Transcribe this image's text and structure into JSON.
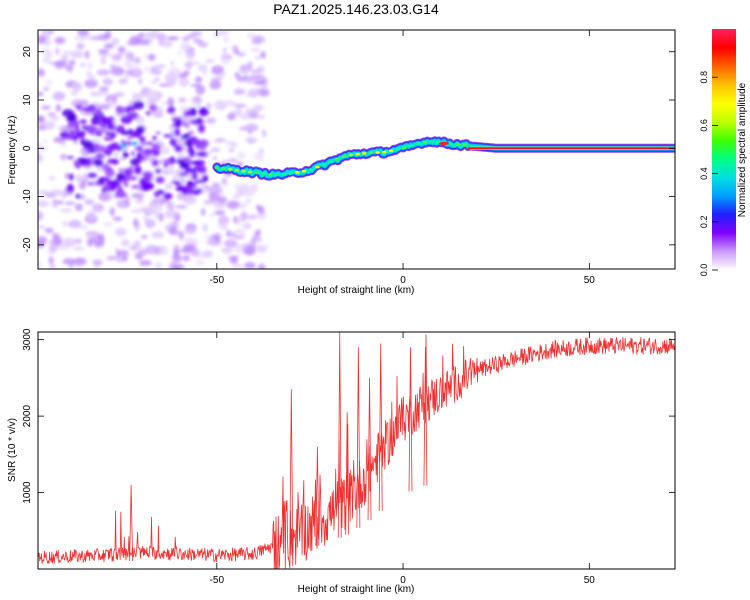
{
  "title": "PAZ1.2025.146.23.03.G14",
  "chart_data": [
    {
      "type": "heatmap",
      "xlabel": "Height of straight line (km)",
      "ylabel": "Frequency (Hz)",
      "xlim": [
        -98,
        73
      ],
      "ylim": [
        -25,
        24.5
      ],
      "xticks": [
        -50,
        0,
        50
      ],
      "yticks": [
        -20,
        -10,
        0,
        10,
        20
      ],
      "grid": false,
      "colorbar": {
        "label": "Normalized spectral amplitude",
        "range": [
          0,
          1
        ],
        "ticks": [
          "0.0",
          "0.2",
          "0.4",
          "0.6",
          "0.8"
        ],
        "colormap": "rainbow",
        "colors": [
          "#ffffff",
          "#cc99ff",
          "#8000ff",
          "#2020ff",
          "#00a0ff",
          "#00e0e0",
          "#00ff80",
          "#40ff00",
          "#c0ff00",
          "#ffff00",
          "#ffc000",
          "#ff6000",
          "#ff0000",
          "#ff2060"
        ]
      },
      "ridge": {
        "x": [
          -50,
          -45,
          -40,
          -35,
          -30,
          -25,
          -20,
          -15,
          -10,
          -5,
          0,
          5,
          8,
          12,
          18,
          25,
          40,
          55,
          73
        ],
        "y": [
          -4,
          -4.5,
          -5,
          -5.5,
          -5.2,
          -4.5,
          -3,
          -1.5,
          -1,
          -0.8,
          0,
          1.2,
          1.5,
          1,
          0.5,
          0,
          0,
          0,
          0
        ]
      },
      "noise_region_x": [
        -98,
        -37
      ],
      "noise_core": {
        "x": [
          -88,
          -60
        ],
        "y": [
          -6,
          5
        ]
      }
    },
    {
      "type": "line",
      "xlabel": "Height of straight line (km)",
      "ylabel": "SNR (10 * v/v)",
      "xlim": [
        -98,
        73
      ],
      "ylim": [
        0,
        3100
      ],
      "xticks": [
        -50,
        0,
        50
      ],
      "yticks": [
        1000,
        2000,
        3000
      ],
      "grid": false,
      "color": "#f03030",
      "envelope": {
        "x": [
          -98,
          -80,
          -70,
          -60,
          -50,
          -40,
          -35,
          -30,
          -25,
          -20,
          -15,
          -10,
          -5,
          0,
          5,
          10,
          15,
          20,
          30,
          40,
          50,
          60,
          73
        ],
        "y": [
          150,
          180,
          220,
          200,
          180,
          200,
          300,
          400,
          550,
          700,
          900,
          1200,
          1600,
          1950,
          2150,
          2300,
          2450,
          2600,
          2750,
          2870,
          2920,
          2920,
          2920
        ]
      },
      "spikes": [
        {
          "x": -73,
          "y": 1100
        },
        {
          "x": -30,
          "y": 2350
        },
        {
          "x": -23,
          "y": 1600
        },
        {
          "x": -17,
          "y": 3100
        },
        {
          "x": -15,
          "y": 2050
        },
        {
          "x": -12,
          "y": 2900
        },
        {
          "x": -9,
          "y": 2500
        },
        {
          "x": -6,
          "y": 2950
        },
        {
          "x": 2,
          "y": 2900
        },
        {
          "x": 6,
          "y": 2900
        }
      ]
    }
  ]
}
